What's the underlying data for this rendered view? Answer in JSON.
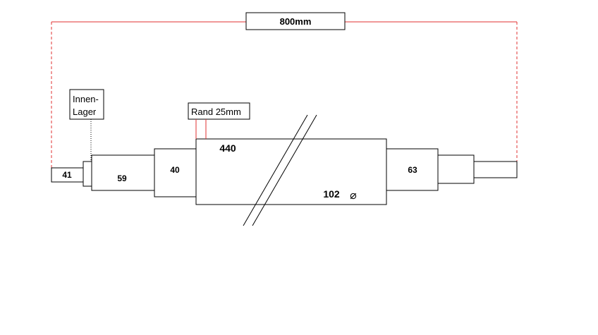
{
  "dimension_total": "800mm",
  "note_bearing": [
    "Innen-",
    "Lager"
  ],
  "note_rim": "Rand 25mm",
  "segments": {
    "s41": "41",
    "s59": "59",
    "s40": "40",
    "s440": "440",
    "s102": "102",
    "s63": "63"
  },
  "diameter_symbol": "⌀",
  "colors": {
    "stroke": "#000000",
    "dimension": "#e03030",
    "background": "#ffffff"
  }
}
